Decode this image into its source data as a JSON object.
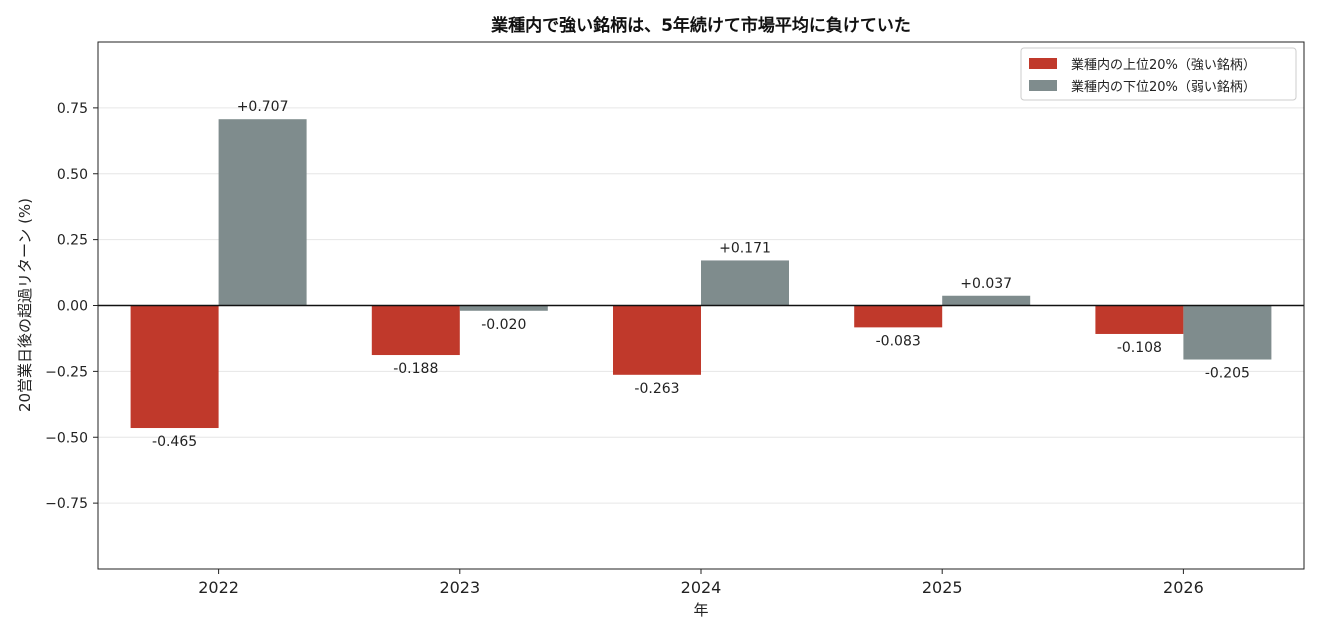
{
  "chart_data": {
    "type": "bar",
    "title": "業種内で強い銘柄は、5年続けて市場平均に負けていた",
    "xlabel": "年",
    "ylabel": "20営業日後の超過リターン (%)",
    "categories": [
      "2022",
      "2023",
      "2024",
      "2025",
      "2026"
    ],
    "ylim": [
      -1.0,
      1.0
    ],
    "yticks": [
      -0.75,
      -0.5,
      -0.25,
      0.0,
      0.25,
      0.5,
      0.75
    ],
    "ytick_labels": [
      "−0.75",
      "−0.50",
      "−0.25",
      "0.00",
      "0.25",
      "0.50",
      "0.75"
    ],
    "grid": "horizontal",
    "legend_position": "top-right",
    "series": [
      {
        "name": "業種内の上位20%（強い銘柄）",
        "color": "#c0392b",
        "values": [
          -0.465,
          -0.188,
          -0.263,
          -0.083,
          -0.108
        ],
        "labels": [
          "-0.465",
          "-0.188",
          "-0.263",
          "-0.083",
          "-0.108"
        ]
      },
      {
        "name": "業種内の下位20%（弱い銘柄）",
        "color": "#7f8c8d",
        "values": [
          0.707,
          -0.02,
          0.171,
          0.037,
          -0.205
        ],
        "labels": [
          "+0.707",
          "-0.020",
          "+0.171",
          "+0.037",
          "-0.205"
        ]
      }
    ]
  }
}
